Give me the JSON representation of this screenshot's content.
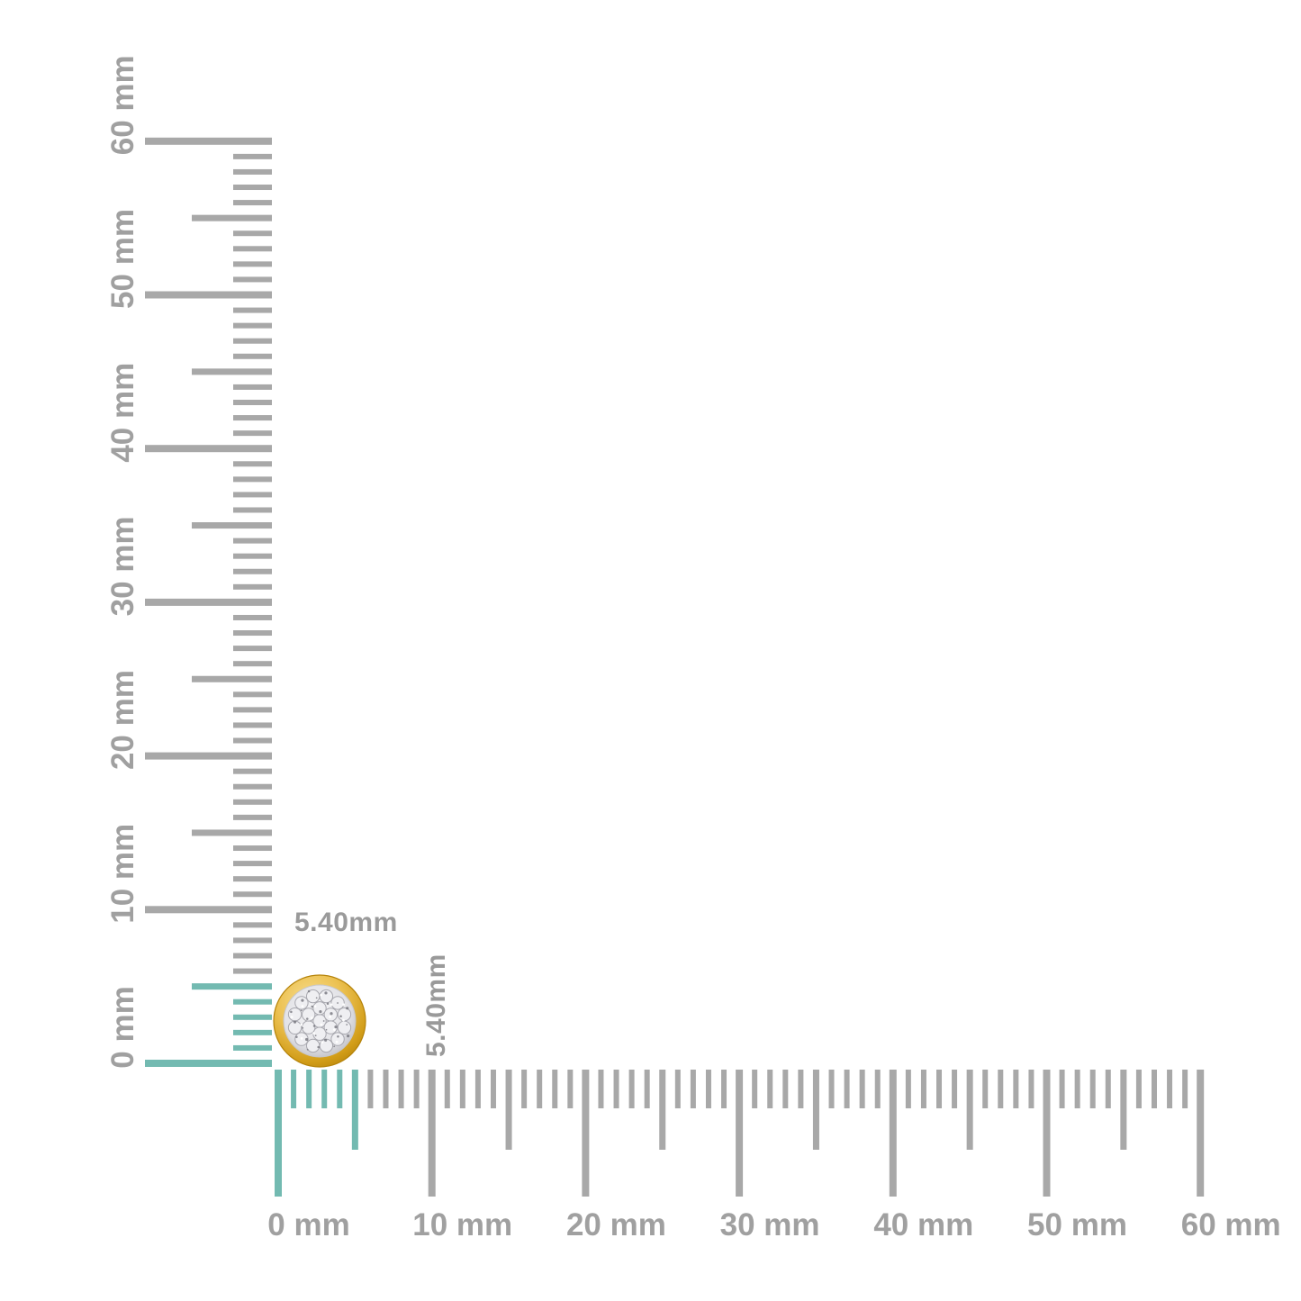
{
  "diagram": {
    "kind": "product-measurement-diagram",
    "background": "#ffffff",
    "product_description": "round yellow-gold bezel pave diamond cluster stud"
  },
  "rulers": {
    "unit": "mm",
    "min_mm": 0,
    "max_mm": 60,
    "major_step_mm": 10,
    "medium_step_mm": 5,
    "highlight_to_mm": 5,
    "tick_color": "#a8a8a8",
    "highlight_color": "#73bab1",
    "label_color": "#a0a0a0",
    "vertical": {
      "labels": [
        "0 mm",
        "10 mm",
        "20 mm",
        "30 mm",
        "40 mm",
        "50 mm",
        "60 mm"
      ]
    },
    "horizontal": {
      "labels": [
        "0 mm",
        "10 mm",
        "20 mm",
        "30 mm",
        "40 mm",
        "50 mm",
        "60 mm"
      ]
    }
  },
  "measurement": {
    "width_label": "5.40mm",
    "height_label": "5.40mm",
    "label_color": "#9a9a9a"
  },
  "product": {
    "name": "pave-diamond-cluster-stud-gold-bezel",
    "colors": {
      "gold_light": "#f8e095",
      "gold_mid": "#ecc152",
      "gold_deep": "#d29d18",
      "gold_edge": "#b5830a",
      "pave_light": "#f7f7f9",
      "pave_mid": "#e2e2e6",
      "pave_dark": "#bfbfc5",
      "stone_fill": "#efeff2",
      "stone_stroke": "#a7a7ae",
      "fleck": "#74747c",
      "sparkle": "#ffffff"
    }
  }
}
